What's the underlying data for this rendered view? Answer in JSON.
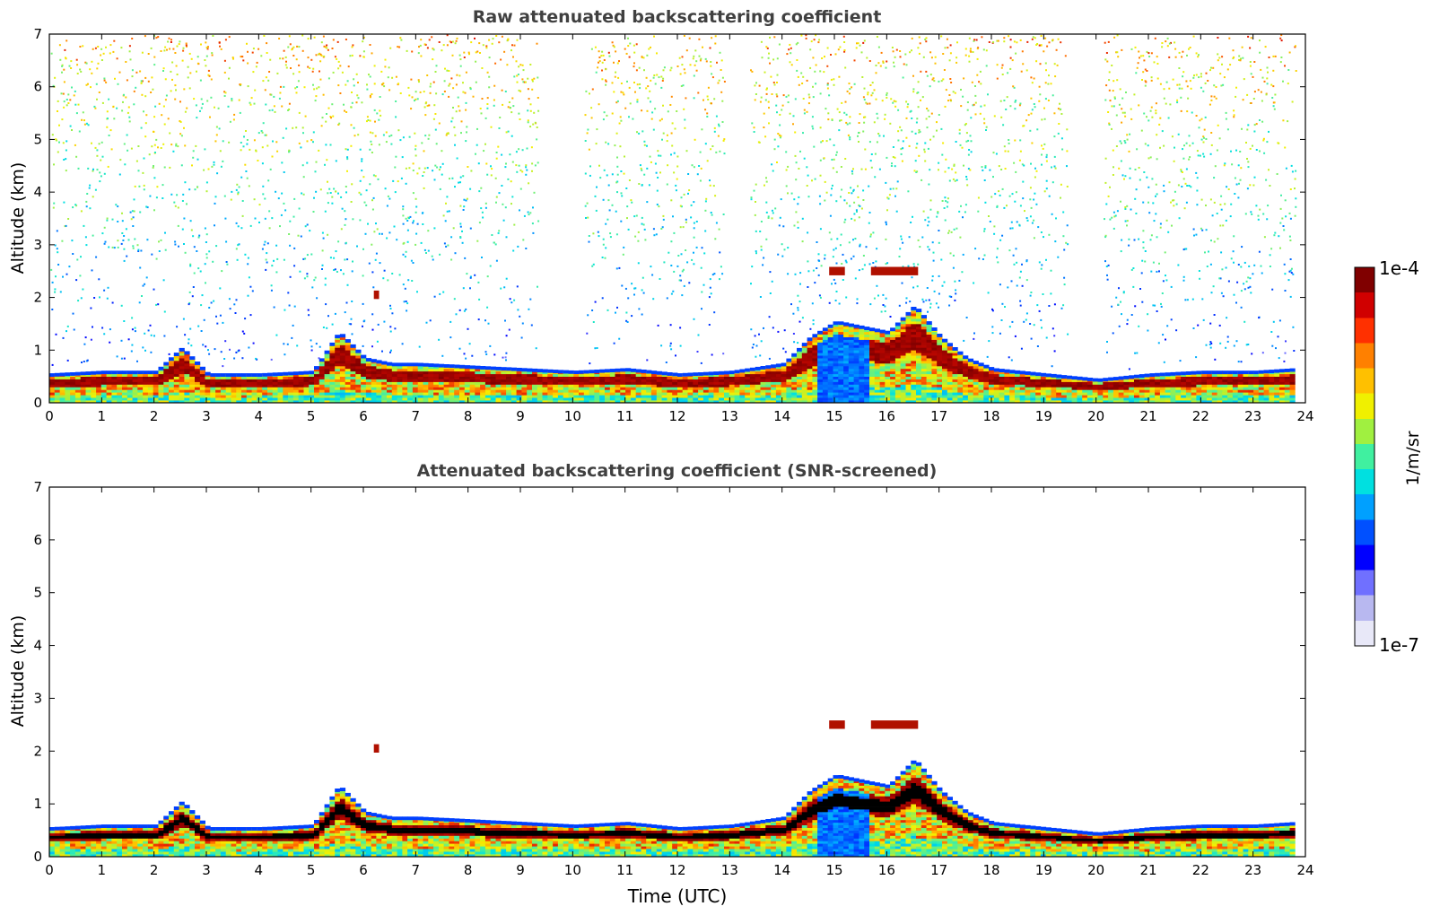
{
  "chart_data": [
    {
      "type": "heatmap",
      "title": "Raw attenuated backscattering coefficient",
      "xlabel": "",
      "ylabel": "Altitude (km)",
      "xlim": [
        0,
        24
      ],
      "ylim": [
        0,
        7
      ],
      "xticks": [
        "0",
        "1",
        "2",
        "3",
        "4",
        "5",
        "6",
        "7",
        "8",
        "9",
        "10",
        "11",
        "12",
        "13",
        "14",
        "15",
        "16",
        "17",
        "18",
        "19",
        "20",
        "21",
        "22",
        "23",
        "24"
      ],
      "yticks": [
        "0",
        "1",
        "2",
        "3",
        "4",
        "5",
        "6",
        "7"
      ],
      "data_end_hour": 23.8,
      "boundary_layer_top_km": [
        [
          0,
          0.5
        ],
        [
          1,
          0.55
        ],
        [
          2,
          0.55
        ],
        [
          2.5,
          1.0
        ],
        [
          3,
          0.5
        ],
        [
          4,
          0.5
        ],
        [
          5,
          0.55
        ],
        [
          5.5,
          1.3
        ],
        [
          6,
          0.8
        ],
        [
          6.5,
          0.7
        ],
        [
          7,
          0.7
        ],
        [
          8,
          0.65
        ],
        [
          9,
          0.6
        ],
        [
          10,
          0.55
        ],
        [
          11,
          0.6
        ],
        [
          12,
          0.5
        ],
        [
          13,
          0.55
        ],
        [
          14,
          0.7
        ],
        [
          14.5,
          1.2
        ],
        [
          15,
          1.5
        ],
        [
          15.5,
          1.4
        ],
        [
          16,
          1.3
        ],
        [
          16.5,
          1.8
        ],
        [
          17,
          1.2
        ],
        [
          17.5,
          0.8
        ],
        [
          18,
          0.6
        ],
        [
          19,
          0.5
        ],
        [
          20,
          0.4
        ],
        [
          21,
          0.5
        ],
        [
          22,
          0.55
        ],
        [
          23,
          0.55
        ],
        [
          23.8,
          0.6
        ]
      ],
      "elevated_layers": [
        {
          "x0": 14.9,
          "x1": 15.2,
          "alt_km": 2.5
        },
        {
          "x0": 15.7,
          "x1": 16.6,
          "alt_km": 2.5
        },
        {
          "x0": 6.2,
          "x1": 6.3,
          "alt_km": 2.05
        }
      ],
      "noise_free_bands": [
        [
          9.3,
          10.2
        ],
        [
          12.8,
          13.3
        ],
        [
          19.4,
          20.1
        ]
      ]
    },
    {
      "type": "heatmap",
      "title": "Attenuated backscattering coefficient (SNR-screened)",
      "xlabel": "Time (UTC)",
      "ylabel": "Altitude (km)",
      "xlim": [
        0,
        24
      ],
      "ylim": [
        0,
        7
      ],
      "xticks": [
        "0",
        "1",
        "2",
        "3",
        "4",
        "5",
        "6",
        "7",
        "8",
        "9",
        "10",
        "11",
        "12",
        "13",
        "14",
        "15",
        "16",
        "17",
        "18",
        "19",
        "20",
        "21",
        "22",
        "23",
        "24"
      ],
      "yticks": [
        "0",
        "1",
        "2",
        "3",
        "4",
        "5",
        "6",
        "7"
      ]
    }
  ],
  "colorbar": {
    "max_label": "1e-4",
    "min_label": "1e-7",
    "unit": "1/m/sr",
    "colors": [
      "#e8e8f8",
      "#b8b8f0",
      "#7070ff",
      "#0000ff",
      "#0050ff",
      "#00a0ff",
      "#00e0e0",
      "#40f0a0",
      "#a0f040",
      "#f0f000",
      "#ffc000",
      "#ff8000",
      "#ff3000",
      "#d00000",
      "#800000"
    ]
  }
}
